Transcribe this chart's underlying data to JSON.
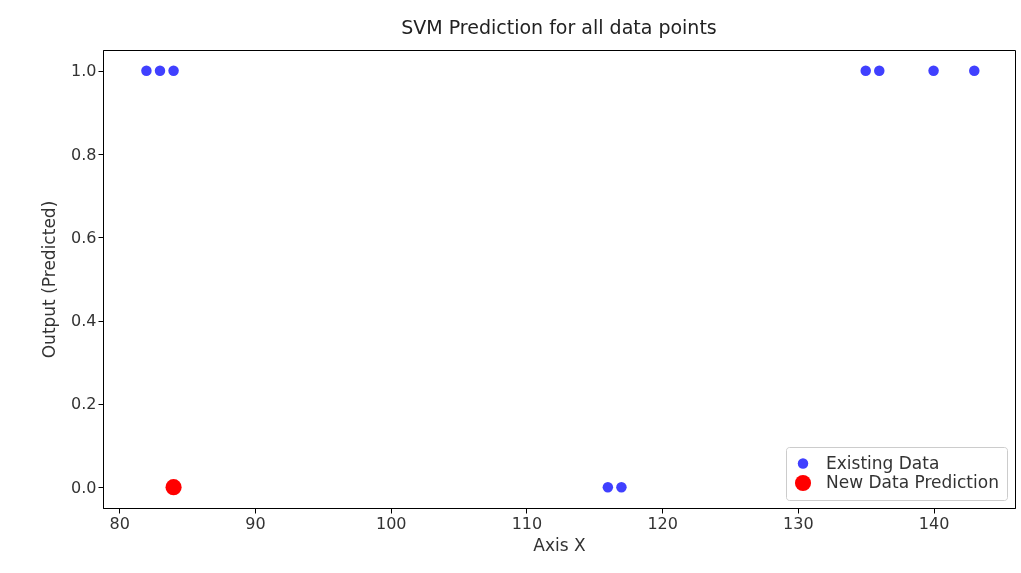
{
  "chart_data": {
    "type": "scatter",
    "title": "SVM Prediction for all data points",
    "xlabel": "Axis X",
    "ylabel": "Output (Predicted)",
    "series": [
      {
        "name": "Existing Data",
        "color": "#4040ff",
        "x": [
          82,
          83,
          84,
          135,
          136,
          140,
          143,
          116,
          117
        ],
        "values": [
          1,
          1,
          1,
          1,
          1,
          1,
          1,
          0,
          0
        ]
      },
      {
        "name": "New Data Prediction",
        "color": "#ff0000",
        "x": [
          84
        ],
        "values": [
          0
        ]
      }
    ],
    "xlim": [
      78.8,
      146
    ],
    "xticks": [
      80,
      90,
      100,
      110,
      120,
      130,
      140
    ],
    "ylim": [
      -0.05,
      1.05
    ],
    "yticks": [
      {
        "value": 0,
        "label": "0.0"
      },
      {
        "value": 0.2,
        "label": "0.2"
      },
      {
        "value": 0.4,
        "label": "0.4"
      },
      {
        "value": 0.6,
        "label": "0.6"
      },
      {
        "value": 0.8,
        "label": "0.8"
      },
      {
        "value": 1,
        "label": "1.0"
      }
    ],
    "legend": "bottom right",
    "marker": "circle"
  }
}
